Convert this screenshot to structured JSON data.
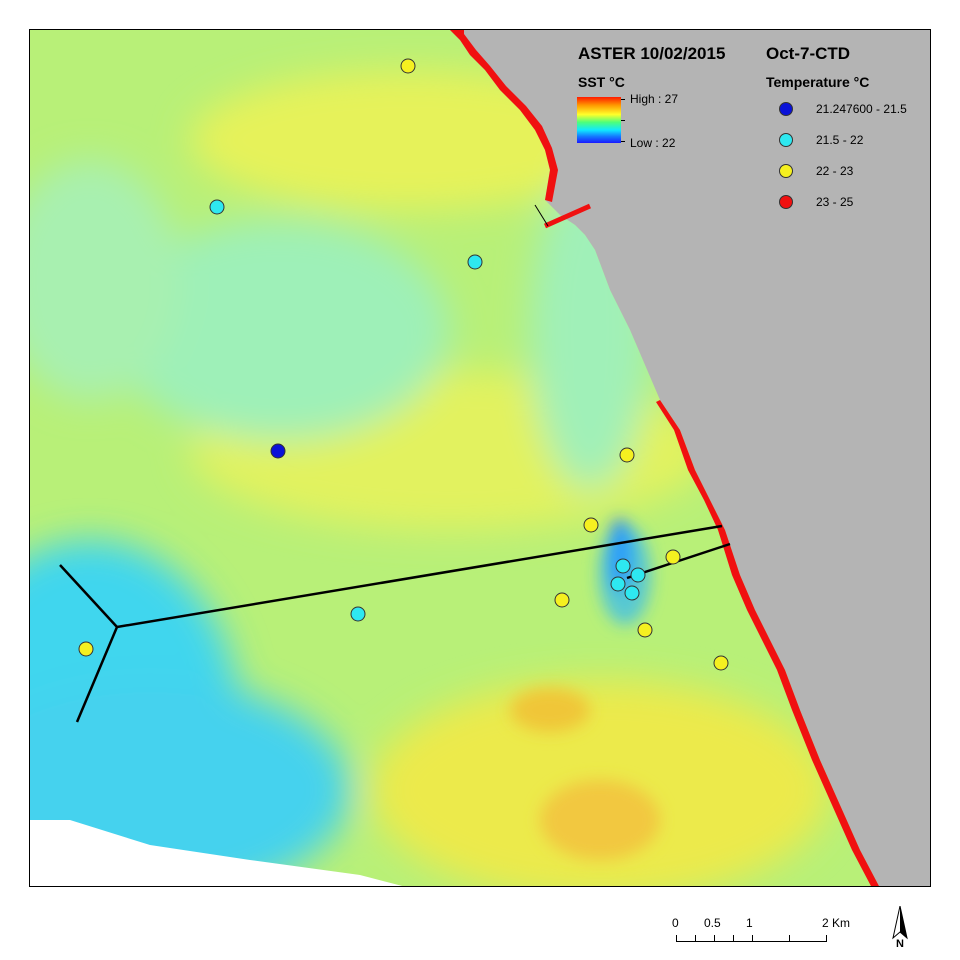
{
  "title_left": "ASTER 10/02/2015",
  "title_right": "Oct-7-CTD",
  "sst_legend": {
    "label": "SST °C",
    "high": "High : 27",
    "low": "Low : 22"
  },
  "ctd_legend": {
    "label": "Temperature  °C",
    "classes": [
      {
        "range": "21.247600 - 21.5",
        "color": "#0a12d8"
      },
      {
        "range": "21.5 - 22",
        "color": "#2ee8f0"
      },
      {
        "range": "22 - 23",
        "color": "#f5f020"
      },
      {
        "range": "23 - 25",
        "color": "#f01010"
      }
    ]
  },
  "scale_bar": {
    "labels": [
      "0",
      "0.5",
      "1",
      "2 Km"
    ]
  },
  "north_arrow": {
    "label": "N"
  },
  "colors": {
    "land": "#b4b4b4",
    "sst_cool": "#3cd8f0",
    "sst_mid": "#9cf0b0",
    "sst_warm": "#e8f060",
    "sst_hot": "#f0c040",
    "coast_warm": "#f01010",
    "nodata": "#ffffff"
  }
}
